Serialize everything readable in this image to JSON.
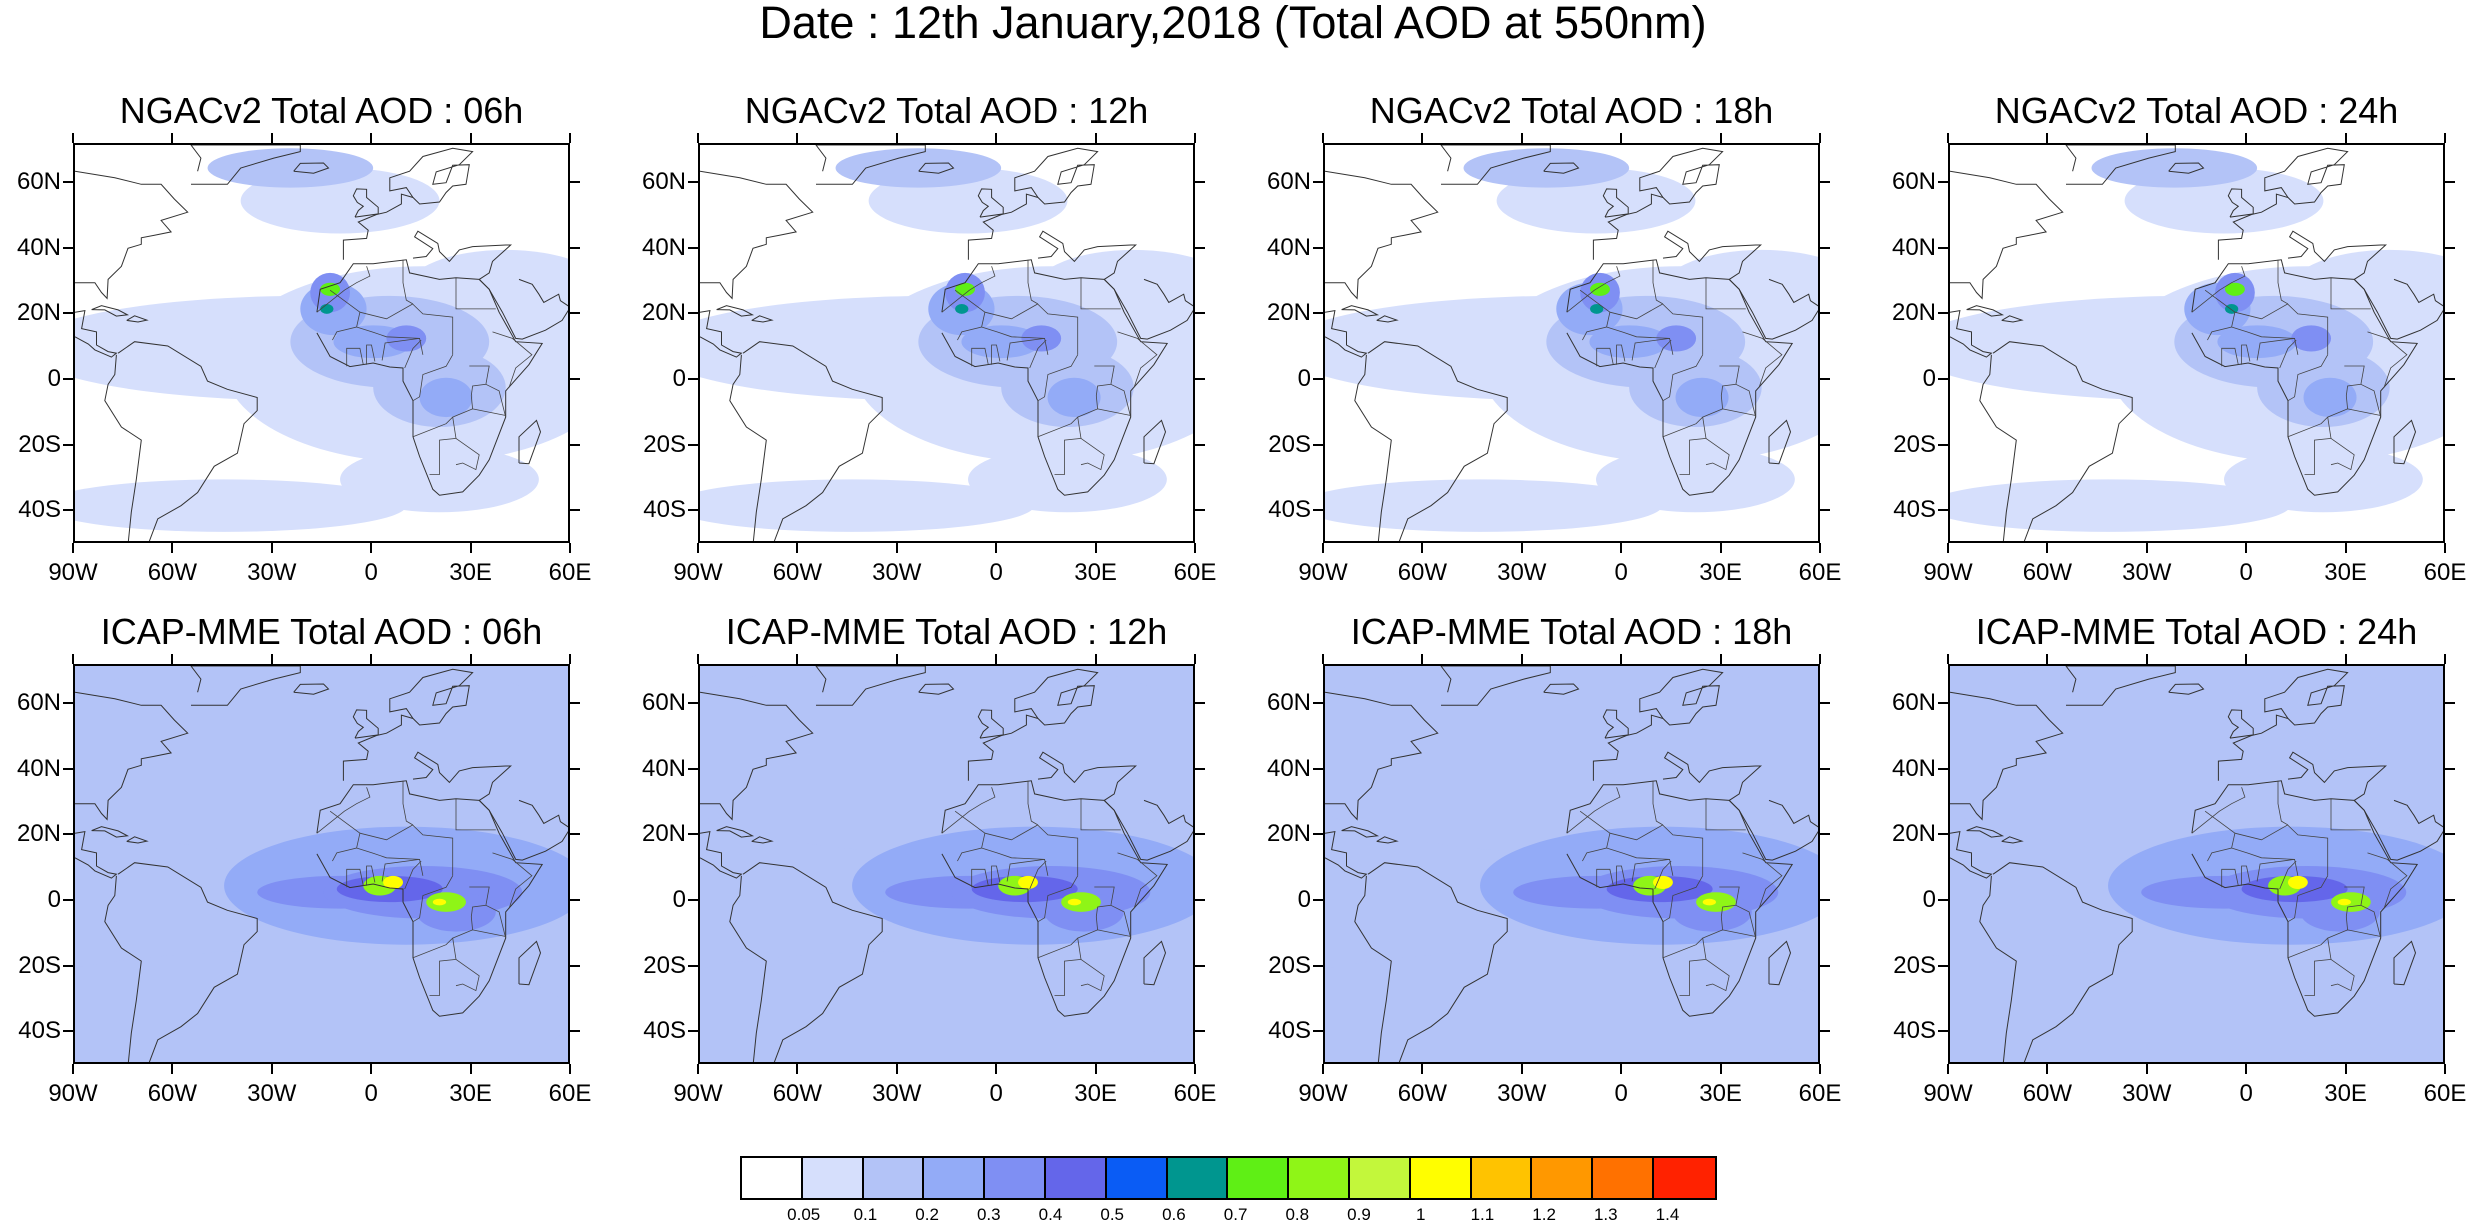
{
  "title": "Date : 12th January,2018 (Total AOD at 550nm)",
  "panels": [
    {
      "title": "NGACv2 Total AOD : 06h",
      "model": "NGACv2",
      "hour": "06h"
    },
    {
      "title": "NGACv2 Total AOD : 12h",
      "model": "NGACv2",
      "hour": "12h"
    },
    {
      "title": "NGACv2 Total AOD : 18h",
      "model": "NGACv2",
      "hour": "18h"
    },
    {
      "title": "NGACv2 Total AOD : 24h",
      "model": "NGACv2",
      "hour": "24h"
    },
    {
      "title": "ICAP-MME Total AOD : 06h",
      "model": "ICAP-MME",
      "hour": "06h"
    },
    {
      "title": "ICAP-MME Total AOD : 12h",
      "model": "ICAP-MME",
      "hour": "12h"
    },
    {
      "title": "ICAP-MME Total AOD : 18h",
      "model": "ICAP-MME",
      "hour": "18h"
    },
    {
      "title": "ICAP-MME Total AOD : 24h",
      "model": "ICAP-MME",
      "hour": "24h"
    }
  ],
  "lat_labels": [
    "60N",
    "40N",
    "20N",
    "0",
    "20S",
    "40S"
  ],
  "lon_labels": [
    "90W",
    "60W",
    "30W",
    "0",
    "30E",
    "60E"
  ],
  "colorbar": {
    "colors": [
      "#ffffff",
      "#d6dffc",
      "#b3c3f7",
      "#93abf7",
      "#7f8ff3",
      "#6466ea",
      "#0a5cf5",
      "#00968f",
      "#5fef15",
      "#8ff517",
      "#c3f73b",
      "#fffe00",
      "#ffc300",
      "#ff9800",
      "#ff7100",
      "#ff2200"
    ],
    "labels": [
      "0.05",
      "0.1",
      "0.2",
      "0.3",
      "0.4",
      "0.5",
      "0.6",
      "0.7",
      "0.8",
      "0.9",
      "1",
      "1.1",
      "1.2",
      "1.3",
      "1.4"
    ]
  }
}
